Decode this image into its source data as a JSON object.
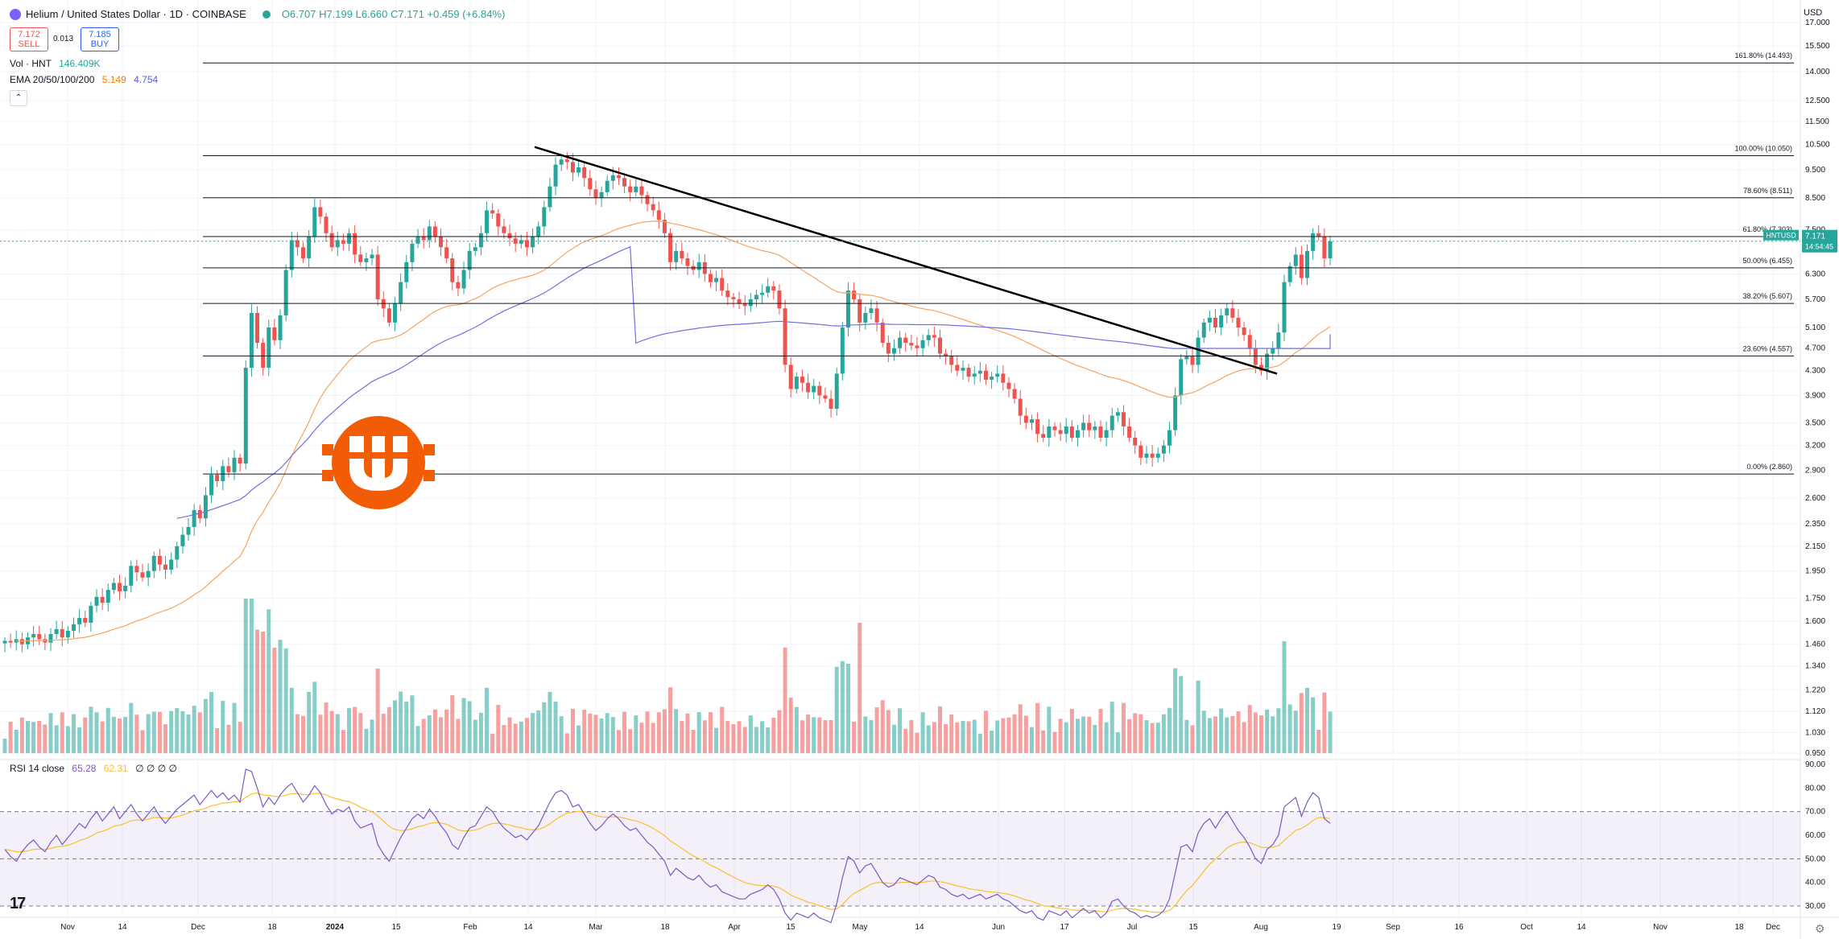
{
  "header": {
    "title": "Helium / United States Dollar · 1D · COINBASE",
    "ohlc": "O6.707 H7.199 L6.660 C7.171 +0.459 (+6.84%)"
  },
  "trade": {
    "sell_price": "7.172",
    "sell_label": "SELL",
    "spread": "0.013",
    "buy_price": "7.185",
    "buy_label": "BUY"
  },
  "indicators": {
    "vol_label": "Vol · HNT",
    "vol_value": "146.409K",
    "ema_label": "EMA 20/50/100/200",
    "ema_a": "5.149",
    "ema_b": "4.754",
    "rsi_label": "RSI 14 close",
    "rsi_value": "65.28",
    "rsi_ma": "62.31",
    "rsi_extra": "∅ ∅ ∅ ∅"
  },
  "currency": "USD",
  "collapse_icon": "chevron-up-icon",
  "colors": {
    "up": "#26a69a",
    "down": "#ef5350",
    "ema50": "#f4a460",
    "ema200": "#7070e0",
    "rsi": "#7e57c2",
    "rsi_ma": "#fbc02d"
  },
  "chart_data": {
    "type": "candlestick",
    "symbol": "HNTUSD",
    "last_price_tag": "7.171",
    "countdown": "14:54:45",
    "price_axis": [
      "17.000",
      "15.500",
      "14.000",
      "12.500",
      "11.500",
      "10.500",
      "9.500",
      "8.500",
      "7.500",
      "6.300",
      "5.700",
      "5.100",
      "4.700",
      "4.300",
      "3.900",
      "3.500",
      "3.200",
      "2.900",
      "2.600",
      "2.350",
      "2.150",
      "1.950",
      "1.750",
      "1.600",
      "1.460",
      "1.340",
      "1.220",
      "1.120",
      "1.030",
      "0.950"
    ],
    "rsi_axis": [
      "90.00",
      "80.00",
      "70.00",
      "60.00",
      "50.00",
      "40.00",
      "30.00"
    ],
    "x_axis": [
      "Nov",
      "14",
      "Dec",
      "18",
      "2024",
      "15",
      "Feb",
      "14",
      "Mar",
      "18",
      "Apr",
      "15",
      "May",
      "14",
      "Jun",
      "17",
      "Jul",
      "15",
      "Aug",
      "19",
      "Sep",
      "16",
      "Oct",
      "14",
      "Nov",
      "18",
      "Dec"
    ],
    "fib_levels": [
      {
        "label": "161.80% (14.493)",
        "value": 14.493
      },
      {
        "label": "100.00% (10.050)",
        "value": 10.05
      },
      {
        "label": "78.60% (8.511)",
        "value": 8.511
      },
      {
        "label": "61.80% (7.303)",
        "value": 7.303
      },
      {
        "label": "50.00% (6.455)",
        "value": 6.455
      },
      {
        "label": "38.20% (5.607)",
        "value": 5.607
      },
      {
        "label": "23.60% (4.557)",
        "value": 4.557
      },
      {
        "label": "0.00% (2.860)",
        "value": 2.86
      }
    ],
    "trendline": [
      {
        "x": "Feb 18",
        "y": 10.4
      },
      {
        "x": "Aug 5",
        "y": 4.25
      }
    ],
    "closes": [
      1.48,
      1.47,
      1.49,
      1.46,
      1.5,
      1.52,
      1.49,
      1.47,
      1.52,
      1.55,
      1.5,
      1.54,
      1.58,
      1.62,
      1.59,
      1.7,
      1.76,
      1.72,
      1.81,
      1.86,
      1.8,
      1.84,
      1.99,
      1.94,
      1.9,
      1.95,
      2.07,
      2.0,
      1.96,
      2.04,
      2.15,
      2.25,
      2.32,
      2.48,
      2.4,
      2.63,
      2.85,
      2.78,
      2.95,
      2.88,
      3.05,
      2.98,
      4.35,
      5.4,
      4.8,
      4.35,
      5.1,
      4.85,
      5.35,
      6.4,
      7.2,
      7.0,
      6.7,
      7.3,
      8.2,
      7.9,
      7.4,
      7.0,
      7.2,
      7.1,
      7.4,
      6.8,
      6.6,
      6.7,
      6.8,
      5.7,
      5.5,
      5.2,
      5.6,
      6.1,
      6.6,
      7.1,
      7.3,
      7.2,
      7.6,
      7.3,
      7.0,
      6.7,
      6.1,
      5.95,
      6.4,
      6.9,
      7.0,
      7.4,
      8.1,
      8.0,
      7.6,
      7.4,
      7.25,
      7.1,
      7.2,
      7.0,
      7.3,
      7.6,
      8.2,
      8.9,
      9.7,
      9.9,
      9.8,
      9.4,
      9.6,
      9.2,
      8.8,
      8.5,
      8.7,
      9.1,
      9.3,
      9.2,
      8.9,
      8.7,
      8.9,
      8.6,
      8.3,
      8.1,
      7.8,
      7.4,
      6.6,
      6.9,
      6.7,
      6.5,
      6.4,
      6.6,
      6.3,
      6.1,
      6.2,
      5.9,
      5.75,
      5.7,
      5.6,
      5.55,
      5.7,
      5.8,
      5.85,
      6.0,
      5.9,
      5.5,
      4.4,
      4.0,
      4.2,
      4.1,
      3.95,
      4.05,
      3.9,
      3.85,
      3.7,
      4.25,
      5.1,
      5.9,
      5.7,
      5.2,
      5.4,
      5.5,
      5.2,
      4.8,
      4.6,
      4.7,
      4.9,
      4.8,
      4.75,
      4.7,
      4.85,
      4.95,
      4.9,
      4.6,
      4.55,
      4.4,
      4.3,
      4.35,
      4.2,
      4.25,
      4.3,
      4.15,
      4.2,
      4.25,
      4.1,
      4.0,
      3.85,
      3.6,
      3.5,
      3.55,
      3.35,
      3.3,
      3.45,
      3.4,
      3.35,
      3.45,
      3.3,
      3.4,
      3.5,
      3.4,
      3.45,
      3.3,
      3.4,
      3.6,
      3.65,
      3.45,
      3.3,
      3.2,
      3.05,
      3.1,
      3.05,
      3.1,
      3.2,
      3.4,
      3.9,
      4.5,
      4.55,
      4.4,
      4.9,
      5.2,
      5.3,
      5.1,
      5.35,
      5.5,
      5.3,
      5.1,
      4.95,
      4.7,
      4.4,
      4.3,
      4.6,
      4.7,
      5.0,
      6.1,
      6.5,
      6.8,
      6.2,
      6.9,
      7.4,
      7.3,
      6.7,
      7.17
    ],
    "volume_axis_note": "Vol · HNT",
    "rsi": [
      54,
      51,
      49,
      53,
      56,
      58,
      55,
      53,
      57,
      60,
      56,
      59,
      62,
      65,
      63,
      67,
      70,
      66,
      69,
      72,
      67,
      70,
      73,
      69,
      66,
      69,
      72,
      68,
      65,
      68,
      71,
      73,
      75,
      77,
      73,
      76,
      79,
      76,
      78,
      75,
      77,
      74,
      88,
      87,
      80,
      72,
      76,
      73,
      77,
      80,
      82,
      78,
      74,
      77,
      81,
      78,
      73,
      69,
      71,
      70,
      72,
      66,
      63,
      64,
      65,
      56,
      52,
      49,
      54,
      59,
      63,
      67,
      69,
      67,
      71,
      68,
      64,
      61,
      56,
      54,
      59,
      63,
      64,
      68,
      72,
      70,
      66,
      63,
      61,
      59,
      60,
      58,
      61,
      64,
      69,
      74,
      78,
      79,
      77,
      72,
      73,
      69,
      65,
      62,
      64,
      67,
      69,
      67,
      64,
      62,
      63,
      60,
      57,
      55,
      52,
      49,
      43,
      46,
      44,
      42,
      41,
      43,
      40,
      38,
      39,
      36,
      35,
      34,
      33,
      33,
      35,
      36,
      37,
      39,
      37,
      33,
      27,
      24,
      27,
      26,
      25,
      27,
      25,
      24,
      23,
      31,
      42,
      51,
      49,
      44,
      47,
      48,
      44,
      40,
      38,
      39,
      42,
      41,
      40,
      39,
      41,
      43,
      42,
      38,
      37,
      35,
      34,
      35,
      33,
      34,
      35,
      33,
      34,
      35,
      33,
      32,
      30,
      28,
      27,
      28,
      25,
      24,
      28,
      27,
      26,
      28,
      25,
      27,
      29,
      27,
      28,
      25,
      27,
      32,
      33,
      30,
      28,
      27,
      25,
      26,
      25,
      26,
      28,
      33,
      44,
      55,
      56,
      53,
      61,
      65,
      67,
      63,
      67,
      70,
      66,
      62,
      59,
      55,
      50,
      48,
      54,
      56,
      60,
      72,
      74,
      76,
      68,
      74,
      78,
      76,
      67,
      65
    ]
  }
}
